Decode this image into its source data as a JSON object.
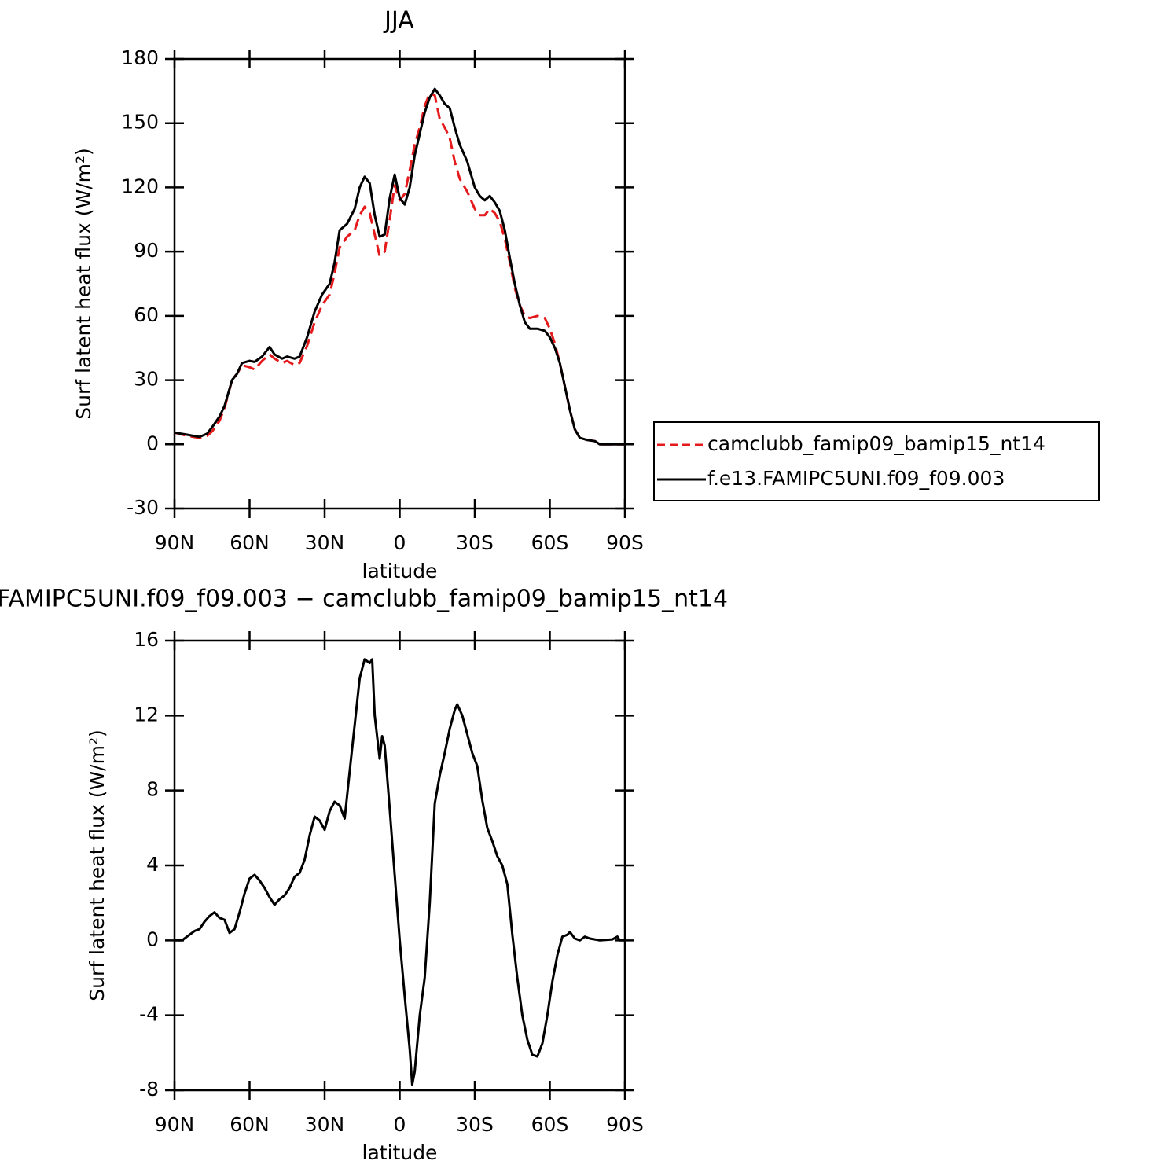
{
  "chart_data": [
    {
      "type": "line",
      "title": "JJA",
      "ylabel": "Surf latent heat flux (W/m²)",
      "xlabel": "latitude",
      "xlim": [
        90,
        -90
      ],
      "xticks": [
        {
          "value": 90,
          "label": "90N"
        },
        {
          "value": 60,
          "label": "60N"
        },
        {
          "value": 30,
          "label": "30N"
        },
        0,
        {
          "value": -30,
          "label": "30S"
        },
        {
          "value": -60,
          "label": "60S"
        },
        {
          "value": -90,
          "label": "90S"
        }
      ],
      "ylim": [
        -30,
        180
      ],
      "yticks": [
        -30,
        0,
        30,
        60,
        90,
        120,
        150,
        180
      ],
      "legend": "right",
      "x": [
        90,
        85,
        80,
        77,
        75,
        72,
        70,
        67,
        65,
        63,
        60,
        58,
        55,
        52,
        50,
        47,
        45,
        42,
        40,
        37,
        34,
        31,
        28,
        26,
        24,
        21,
        18,
        16,
        14,
        12,
        10,
        8,
        6,
        4,
        2,
        0,
        -2,
        -4,
        -6,
        -8,
        -10,
        -12,
        -14,
        -16,
        -18,
        -20,
        -22,
        -24,
        -27,
        -30,
        -32,
        -34,
        -36,
        -38,
        -40,
        -42,
        -44,
        -46,
        -48,
        -50,
        -52,
        -55,
        -58,
        -60,
        -62,
        -64,
        -66,
        -68,
        -70,
        -72,
        -75,
        -78,
        -80,
        -85,
        -90
      ],
      "series": [
        {
          "name": "camclubb_famip09_bamip15_nt14",
          "color": "#e41a1c",
          "dashed": true,
          "values": [
            5.5,
            4,
            3,
            4,
            6,
            11,
            17,
            30,
            33,
            37,
            36,
            35,
            39,
            42,
            40,
            38,
            39,
            37,
            38,
            46,
            57,
            65,
            70,
            80,
            92,
            97,
            100,
            107,
            111,
            108,
            98,
            88,
            90,
            105,
            121,
            114,
            117,
            128,
            140,
            148,
            158,
            164,
            163,
            152,
            148,
            143,
            132,
            124,
            118,
            110,
            107,
            107,
            110,
            108,
            104,
            96,
            85,
            73,
            65,
            60,
            59,
            60,
            59,
            54,
            47,
            38,
            27,
            16,
            7,
            3,
            2,
            1.5,
            0,
            0,
            0
          ]
        },
        {
          "name": "f.e13.FAMIPC5UNI.f09_f09.003",
          "color": "#000000",
          "dashed": false,
          "values": [
            5.5,
            4.5,
            3.5,
            5,
            8,
            13,
            18,
            30,
            33,
            38,
            39,
            38.5,
            41,
            45.5,
            42,
            40,
            41,
            40,
            41,
            50,
            62,
            70,
            75,
            85,
            100,
            103,
            110,
            120,
            125,
            122,
            107,
            97,
            98,
            115,
            126,
            115,
            112,
            120,
            135,
            145,
            155,
            162,
            166,
            163,
            159,
            157,
            148,
            140,
            132,
            120,
            116,
            114,
            116,
            113,
            109,
            100,
            87,
            75,
            65,
            57,
            54,
            54,
            53,
            50,
            45,
            38,
            27,
            16,
            7,
            3,
            2,
            1.5,
            0,
            0,
            0
          ]
        }
      ]
    },
    {
      "type": "line",
      "title": "FAMIPC5UNI.f09_f09.003 − camclubb_famip09_bamip15_nt14",
      "ylabel": "Surf latent heat flux (W/m²)",
      "xlabel": "latitude",
      "xlim": [
        90,
        -90
      ],
      "xticks": [
        {
          "value": 90,
          "label": "90N"
        },
        {
          "value": 60,
          "label": "60N"
        },
        {
          "value": 30,
          "label": "30N"
        },
        0,
        {
          "value": -30,
          "label": "30S"
        },
        {
          "value": -60,
          "label": "60S"
        },
        {
          "value": -90,
          "label": "90S"
        }
      ],
      "ylim": [
        -8,
        16
      ],
      "yticks": [
        -8,
        -4,
        0,
        4,
        8,
        12,
        16
      ],
      "color": "#000000",
      "x": [
        90,
        87,
        85,
        82,
        80,
        78,
        76,
        74,
        72,
        70,
        68,
        66,
        64,
        62,
        60,
        58,
        56,
        54,
        52,
        50,
        48,
        46,
        44,
        42,
        40,
        38,
        36,
        34,
        32,
        30,
        28,
        26,
        24,
        22,
        20,
        18,
        16,
        14,
        12,
        11,
        10,
        8,
        7,
        6,
        4,
        2,
        0,
        -2,
        -4,
        -5,
        -6,
        -8,
        -10,
        -12,
        -14,
        -16,
        -18,
        -20,
        -22,
        -23,
        -25,
        -27,
        -29,
        -31,
        -33,
        -35,
        -37,
        -39,
        -41,
        -43,
        -45,
        -47,
        -49,
        -51,
        -53,
        -55,
        -57,
        -59,
        -61,
        -63,
        -65,
        -67,
        -68,
        -70,
        -72,
        -74,
        -76,
        -80,
        -85,
        -87,
        -88,
        -90
      ],
      "values": [
        0,
        0,
        0.2,
        0.5,
        0.6,
        1,
        1.3,
        1.5,
        1.2,
        1.1,
        0.4,
        0.6,
        1.5,
        2.5,
        3.3,
        3.5,
        3.2,
        2.8,
        2.3,
        1.9,
        2.2,
        2.4,
        2.8,
        3.4,
        3.6,
        4.3,
        5.6,
        6.6,
        6.4,
        5.9,
        6.9,
        7.4,
        7.2,
        6.5,
        9,
        11.5,
        14,
        15,
        14.8,
        15,
        12,
        9.7,
        10.9,
        10.4,
        7,
        3.5,
        0,
        -3,
        -5.8,
        -7.7,
        -7,
        -4,
        -2,
        2,
        7.3,
        8.8,
        10,
        11.3,
        12.3,
        12.6,
        12,
        11,
        10,
        9.3,
        7.5,
        6,
        5.3,
        4.5,
        4,
        3,
        0.3,
        -2,
        -4,
        -5.3,
        -6.1,
        -6.2,
        -5.5,
        -4,
        -2.2,
        -0.8,
        0.2,
        0.3,
        0.45,
        0.1,
        0,
        0.2,
        0.1,
        0,
        0.05,
        0.2,
        0,
        0
      ]
    }
  ]
}
